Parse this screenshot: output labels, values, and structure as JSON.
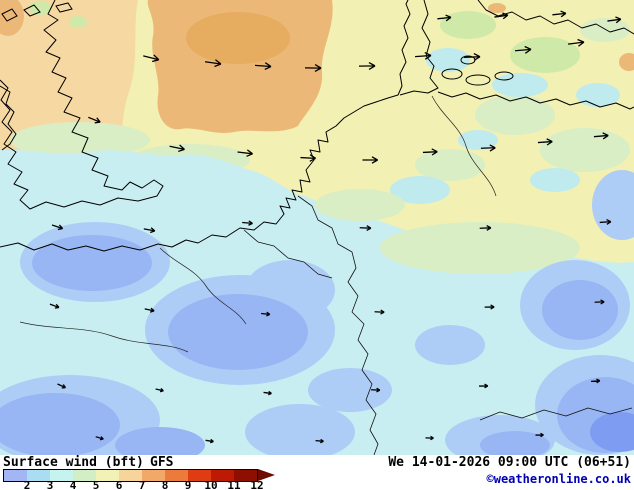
{
  "footer": {
    "product": "Surface wind (bft)",
    "model": "GFS",
    "valid": "We 14-01-2026 09:00 UTC (06+51)",
    "credit": "©weatheronline.co.uk"
  },
  "legend": {
    "ticks": [
      "2",
      "3",
      "4",
      "5",
      "6",
      "7",
      "8",
      "9",
      "10",
      "11",
      "12"
    ],
    "colors": [
      "#a2b6f6",
      "#aadcf2",
      "#c6f2f0",
      "#d2eec4",
      "#f2f2b6",
      "#f6d49c",
      "#f2a868",
      "#ec7a3a",
      "#e03c14",
      "#bc1a04",
      "#8e0e00"
    ],
    "arrow_color": "#6e0a00"
  },
  "map": {
    "palette": {
      "base": "#f2f0b2",
      "peach": "#f6d8a2",
      "orange": "#ecb878",
      "orange_deep": "#e6ac60",
      "green": "#cfe9a8",
      "green_pale": "#daeec6",
      "cyan_patch": "#bfebee",
      "cyan": "#c9eef2",
      "blue_light": "#aecdf6",
      "blue": "#98b6f4",
      "blue_dark": "#7e9cf2"
    },
    "arrows": [
      [
        445,
        18,
        -6,
        0.85
      ],
      [
        502,
        16,
        -8,
        0.85
      ],
      [
        560,
        14,
        -6,
        0.85
      ],
      [
        615,
        20,
        -8,
        0.85
      ],
      [
        152,
        58,
        14,
        1
      ],
      [
        214,
        63,
        8,
        1
      ],
      [
        264,
        66,
        4,
        1
      ],
      [
        314,
        68,
        1,
        1
      ],
      [
        368,
        66,
        -1,
        1
      ],
      [
        424,
        56,
        -4,
        1
      ],
      [
        473,
        57,
        -2,
        1
      ],
      [
        524,
        50,
        -5,
        1
      ],
      [
        577,
        43,
        -7,
        1
      ],
      [
        95,
        120,
        22,
        0.8
      ],
      [
        178,
        148,
        12,
        0.95
      ],
      [
        246,
        153,
        7,
        0.95
      ],
      [
        309,
        158,
        3,
        0.95
      ],
      [
        371,
        160,
        0,
        0.95
      ],
      [
        431,
        152,
        -3,
        0.9
      ],
      [
        489,
        148,
        -2,
        0.9
      ],
      [
        546,
        142,
        -4,
        0.9
      ],
      [
        602,
        136,
        -5,
        0.9
      ],
      [
        58,
        227,
        18,
        0.7
      ],
      [
        150,
        230,
        10,
        0.7
      ],
      [
        248,
        223,
        5,
        0.65
      ],
      [
        366,
        228,
        2,
        0.7
      ],
      [
        486,
        228,
        -2,
        0.7
      ],
      [
        606,
        222,
        -4,
        0.7
      ],
      [
        55,
        306,
        20,
        0.6
      ],
      [
        150,
        310,
        12,
        0.6
      ],
      [
        266,
        314,
        6,
        0.55
      ],
      [
        380,
        312,
        3,
        0.6
      ],
      [
        490,
        307,
        -1,
        0.6
      ],
      [
        600,
        302,
        -3,
        0.6
      ],
      [
        62,
        386,
        24,
        0.55
      ],
      [
        160,
        390,
        13,
        0.5
      ],
      [
        268,
        393,
        7,
        0.5
      ],
      [
        376,
        390,
        3,
        0.55
      ],
      [
        484,
        386,
        -1,
        0.55
      ],
      [
        596,
        381,
        -4,
        0.55
      ],
      [
        100,
        438,
        17,
        0.5
      ],
      [
        210,
        441,
        9,
        0.5
      ],
      [
        320,
        441,
        5,
        0.5
      ],
      [
        430,
        438,
        2,
        0.5
      ],
      [
        540,
        435,
        -1,
        0.5
      ]
    ]
  }
}
